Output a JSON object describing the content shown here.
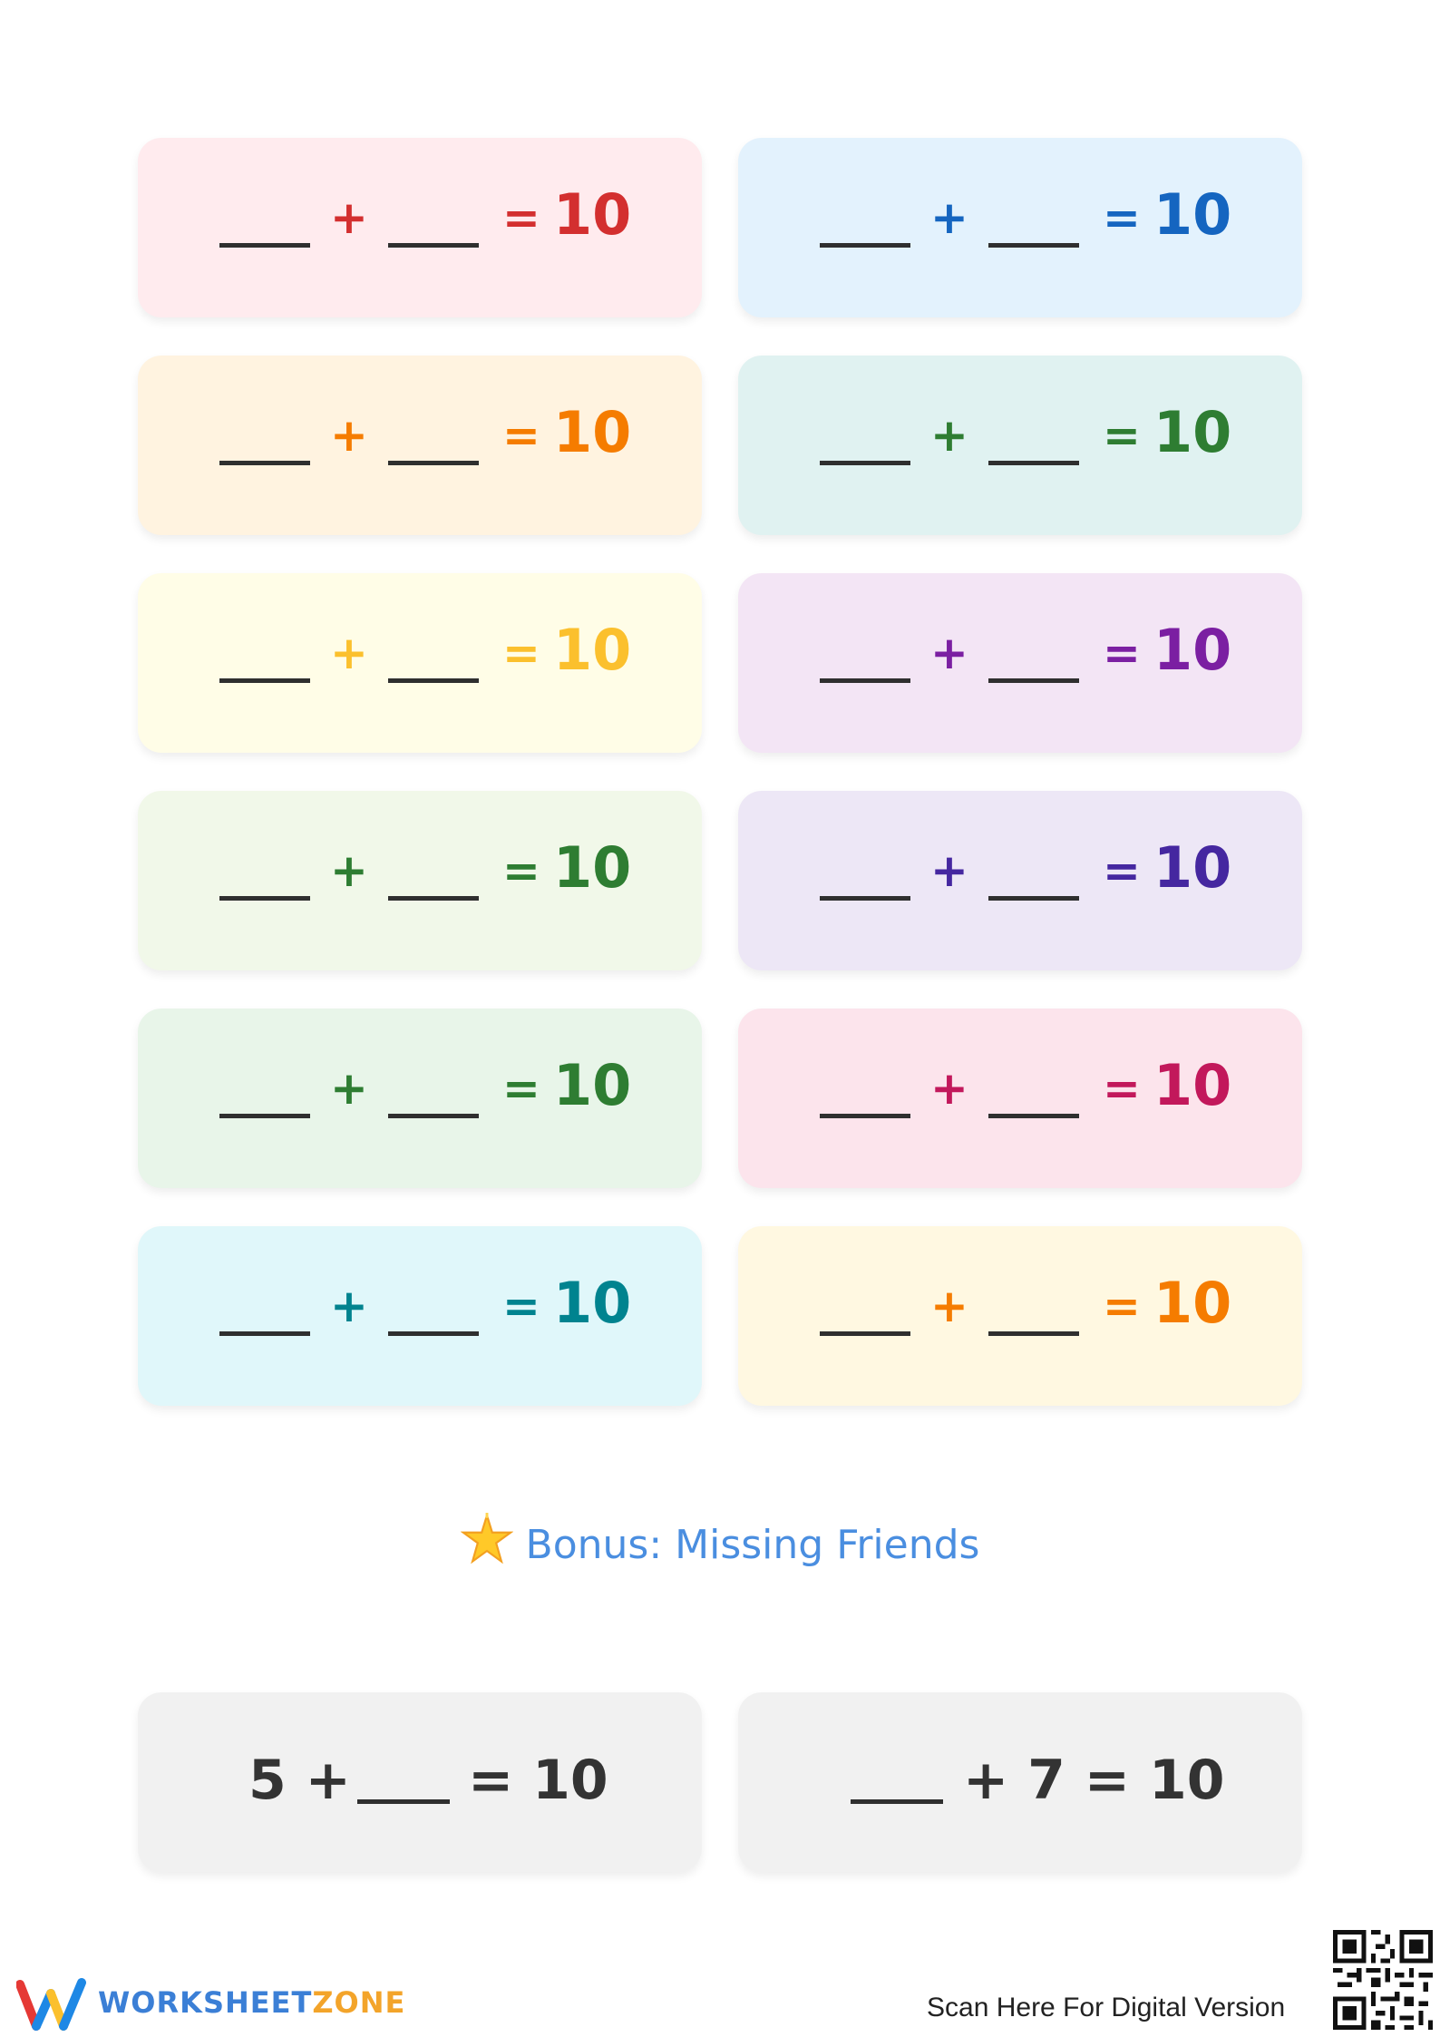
{
  "cards": [
    {
      "plus": "+",
      "equals": "=",
      "answer": "10",
      "bg": "#ffebee",
      "color": "#d32f2f"
    },
    {
      "plus": "+",
      "equals": "=",
      "answer": "10",
      "bg": "#e3f2fd",
      "color": "#1565c0"
    },
    {
      "plus": "+",
      "equals": "=",
      "answer": "10",
      "bg": "#fff3e0",
      "color": "#f57c00"
    },
    {
      "plus": "+",
      "equals": "=",
      "answer": "10",
      "bg": "#e0f2f1",
      "color": "#2e7d32"
    },
    {
      "plus": "+",
      "equals": "=",
      "answer": "10",
      "bg": "#fffde7",
      "color": "#fbc02d"
    },
    {
      "plus": "+",
      "equals": "=",
      "answer": "10",
      "bg": "#f3e5f5",
      "color": "#7b1fa2"
    },
    {
      "plus": "+",
      "equals": "=",
      "answer": "10",
      "bg": "#f1f8e9",
      "color": "#2e7d32"
    },
    {
      "plus": "+",
      "equals": "=",
      "answer": "10",
      "bg": "#ede7f6",
      "color": "#4527a0"
    },
    {
      "plus": "+",
      "equals": "=",
      "answer": "10",
      "bg": "#e8f5e9",
      "color": "#2e7d32"
    },
    {
      "plus": "+",
      "equals": "=",
      "answer": "10",
      "bg": "#fce4ec",
      "color": "#c2185b"
    },
    {
      "plus": "+",
      "equals": "=",
      "answer": "10",
      "bg": "#e0f7fa",
      "color": "#00838f"
    },
    {
      "plus": "+",
      "equals": "=",
      "answer": "10",
      "bg": "#fff8e1",
      "color": "#f57c00"
    }
  ],
  "bonus": {
    "icon": "star-icon",
    "title": "Bonus: Missing Friends",
    "color": "#4a8ee0",
    "left": {
      "prefix": "5 +",
      "suffix": "= 10"
    },
    "right": {
      "suffix": "+ 7 = 10"
    }
  },
  "footer": {
    "brand_part1": "WORKSHEET",
    "brand_part2": "ZONE",
    "scan_text": "Scan Here For Digital Version",
    "qr_icon": "qr-code-icon"
  }
}
